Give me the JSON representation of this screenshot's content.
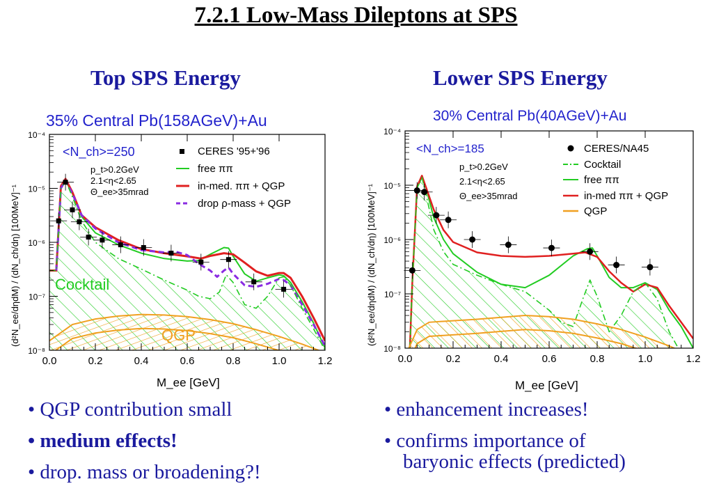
{
  "title": "7.2.1 Low-Mass Dileptons at SPS",
  "left": {
    "heading": "Top SPS Energy",
    "bullets": [
      "• QGP contribution small",
      "• medium effects!",
      "• drop. mass or broadening?!"
    ]
  },
  "right": {
    "heading": "Lower SPS Energy",
    "bullets": [
      "• enhancement increases!",
      "• confirms importance of",
      "baryonic effects (predicted)"
    ]
  },
  "colors": {
    "text_blue": "#1a1a9e",
    "chart_title_blue": "#2222cc",
    "free_pipi": "#22cc22",
    "in_medium": "#e02020",
    "drop_rho": "#8a2be2",
    "qgp": "#f0a020",
    "data": "#000000"
  },
  "chart_data": [
    {
      "type": "line",
      "title": "35% Central Pb(158AGeV)+Au",
      "xlabel": "M_ee [GeV]",
      "ylabel": "(d²N_ee/dηdM) / (dN_ch/dη)  [100MeV]⁻¹",
      "xlim": [
        0.0,
        1.2
      ],
      "ylim_log10": [
        -8,
        -4
      ],
      "x_ticks": [
        "0.0",
        "0.2",
        "0.4",
        "0.6",
        "0.8",
        "1.0",
        "1.2"
      ],
      "y_ticks": [
        "10⁻⁸",
        "10⁻⁷",
        "10⁻⁶",
        "10⁻⁵",
        "10⁻⁴"
      ],
      "log_y": true,
      "annotation_nch": "<N_ch>=250",
      "cuts": [
        "p_t>0.2GeV",
        "2.1<η<2.65",
        "Θ_ee>35mrad"
      ],
      "region_labels": [
        "Cocktail",
        "QGP"
      ],
      "legend_position": "top-right",
      "legend": [
        "CERES  '95+'96",
        "free ππ",
        "in-med. ππ + QGP",
        "drop ρ-mass + QGP"
      ],
      "data_points": {
        "name": "CERES  '95+'96",
        "marker": "square",
        "x": [
          0.04,
          0.07,
          0.1,
          0.13,
          0.17,
          0.23,
          0.31,
          0.41,
          0.53,
          0.66,
          0.78,
          0.89,
          1.02
        ],
        "y": [
          2.5e-06,
          1.3e-05,
          4e-06,
          2.4e-06,
          1.25e-06,
          1.1e-06,
          9e-07,
          8e-07,
          6.3e-07,
          4.3e-07,
          4.8e-07,
          1.85e-07,
          1.35e-07
        ]
      },
      "series": [
        {
          "name": "free ππ",
          "x": [
            0.0,
            0.03,
            0.05,
            0.07,
            0.1,
            0.14,
            0.2,
            0.3,
            0.4,
            0.5,
            0.6,
            0.65,
            0.7,
            0.76,
            0.78,
            0.8,
            0.85,
            0.9,
            0.95,
            1.0,
            1.02,
            1.05,
            1.1,
            1.15,
            1.2
          ],
          "y": [
            3e-07,
            3e-07,
            1e-05,
            1.4e-05,
            8e-06,
            3e-06,
            1.5e-06,
            9e-07,
            6.3e-07,
            5e-07,
            4.5e-07,
            4.6e-07,
            6e-07,
            8e-07,
            7.8e-07,
            5.5e-07,
            2.6e-07,
            1.9e-07,
            2.2e-07,
            2.5e-07,
            2.4e-07,
            1.8e-07,
            8e-08,
            3.2e-08,
            1.1e-08
          ]
        },
        {
          "name": "in-med. ππ + QGP",
          "x": [
            0.0,
            0.03,
            0.05,
            0.07,
            0.1,
            0.14,
            0.2,
            0.3,
            0.4,
            0.5,
            0.6,
            0.66,
            0.7,
            0.76,
            0.8,
            0.85,
            0.9,
            0.95,
            1.0,
            1.02,
            1.05,
            1.1,
            1.15,
            1.2
          ],
          "y": [
            3e-07,
            3e-07,
            1.1e-05,
            1.5e-05,
            8.5e-06,
            3.2e-06,
            1.9e-06,
            1.1e-06,
            7.5e-07,
            6.3e-07,
            5.5e-07,
            5e-07,
            5.6e-07,
            6.3e-07,
            6e-07,
            4.2e-07,
            2.9e-07,
            2.4e-07,
            2.7e-07,
            2.7e-07,
            2.2e-07,
            1e-07,
            4e-08,
            1.5e-08
          ]
        },
        {
          "name": "drop ρ-mass + QGP",
          "x": [
            0.03,
            0.05,
            0.07,
            0.1,
            0.14,
            0.2,
            0.3,
            0.4,
            0.5,
            0.55,
            0.6,
            0.65,
            0.7,
            0.73,
            0.76,
            0.78,
            0.8,
            0.85,
            0.9,
            0.95,
            1.0,
            1.02,
            1.05,
            1.1,
            1.15,
            1.2
          ],
          "y": [
            3e-07,
            1e-05,
            1.4e-05,
            8e-06,
            3.2e-06,
            1.8e-06,
            1e-06,
            7.2e-07,
            6.5e-07,
            6.7e-07,
            5.8e-07,
            4e-07,
            3e-07,
            2.3e-07,
            3e-07,
            3.4e-07,
            2.6e-07,
            1.6e-07,
            1.5e-07,
            1.7e-07,
            2.1e-07,
            2e-07,
            1.6e-07,
            7e-08,
            3e-08,
            1.2e-08
          ]
        },
        {
          "name": "Cocktail",
          "x": [
            0.0,
            0.03,
            0.05,
            0.07,
            0.1,
            0.14,
            0.2,
            0.3,
            0.4,
            0.5,
            0.6,
            0.65,
            0.7,
            0.74,
            0.77,
            0.8,
            0.85,
            0.9,
            0.95,
            1.0,
            1.02,
            1.05,
            1.1,
            1.15,
            1.2
          ],
          "y": [
            3e-07,
            3e-07,
            1e-05,
            1.4e-05,
            7e-06,
            2.5e-06,
            1e-06,
            5e-07,
            3.2e-07,
            2e-07,
            1.3e-07,
            1e-07,
            9e-08,
            1.2e-07,
            2.5e-07,
            1.8e-07,
            7e-08,
            6e-08,
            1e-07,
            2.2e-07,
            2.3e-07,
            1.6e-07,
            6e-08,
            2.5e-08,
            1e-08
          ]
        },
        {
          "name": "QGP",
          "x": [
            0.0,
            0.1,
            0.2,
            0.3,
            0.4,
            0.5,
            0.6,
            0.7,
            0.8,
            0.9,
            1.0,
            1.1,
            1.2
          ],
          "y": [
            1.5e-08,
            3e-08,
            3.8e-08,
            4.3e-08,
            4.6e-08,
            4.5e-08,
            4.2e-08,
            3.7e-08,
            3.1e-08,
            2.4e-08,
            1.8e-08,
            1.3e-08,
            9e-09
          ]
        }
      ]
    },
    {
      "type": "line",
      "title": "30% Central Pb(40AGeV)+Au",
      "xlabel": "M_ee [GeV]",
      "ylabel": "(d²N_ee/dηdM) / (dN_ch/dη)  [100MeV]⁻¹",
      "xlim": [
        0.0,
        1.2
      ],
      "ylim_log10": [
        -8,
        -4
      ],
      "x_ticks": [
        "0.0",
        "0.2",
        "0.4",
        "0.6",
        "0.8",
        "1.0",
        "1.2"
      ],
      "y_ticks": [
        "10⁻⁸",
        "10⁻⁷",
        "10⁻⁶",
        "10⁻⁵",
        "10⁻⁴"
      ],
      "log_y": true,
      "annotation_nch": "<N_ch>=185",
      "cuts": [
        "p_t>0.2GeV",
        "2.1<η<2.65",
        "Θ_ee>35mrad"
      ],
      "legend_position": "top-right",
      "legend": [
        "CERES/NA45",
        "Cocktail",
        "free ππ",
        "in-med ππ + QGP",
        "QGP"
      ],
      "data_points": {
        "name": "CERES/NA45",
        "marker": "circle",
        "x": [
          0.03,
          0.05,
          0.08,
          0.13,
          0.18,
          0.28,
          0.43,
          0.61,
          0.77,
          0.88,
          1.02
        ],
        "y": [
          2.7e-07,
          8e-06,
          7.5e-06,
          2.8e-06,
          2.3e-06,
          1e-06,
          8e-07,
          7e-07,
          6e-07,
          3.4e-07,
          3.1e-07
        ]
      },
      "series": [
        {
          "name": "free ππ",
          "x": [
            0.02,
            0.03,
            0.05,
            0.07,
            0.09,
            0.12,
            0.16,
            0.2,
            0.3,
            0.4,
            0.5,
            0.6,
            0.7,
            0.76,
            0.78,
            0.8,
            0.85,
            0.9,
            0.95,
            1.0,
            1.05,
            1.1,
            1.15,
            1.2
          ],
          "y": [
            1e-08,
            1.5e-07,
            9e-06,
            1.4e-05,
            8e-06,
            2.5e-06,
            1e-06,
            5.5e-07,
            2.5e-07,
            1.5e-07,
            1.3e-07,
            2.2e-07,
            5e-07,
            6.8e-07,
            7e-07,
            5e-07,
            2e-07,
            1.3e-07,
            1.3e-07,
            1.6e-07,
            1.2e-07,
            5e-08,
            2.5e-08,
            1e-08
          ]
        },
        {
          "name": "in-med ππ + QGP",
          "x": [
            0.02,
            0.03,
            0.05,
            0.07,
            0.09,
            0.12,
            0.16,
            0.2,
            0.3,
            0.4,
            0.5,
            0.6,
            0.7,
            0.75,
            0.8,
            0.85,
            0.9,
            0.95,
            1.0,
            1.05,
            1.1,
            1.15,
            1.2
          ],
          "y": [
            1e-08,
            1.5e-07,
            9.5e-06,
            1.5e-05,
            8.5e-06,
            3.5e-06,
            1.5e-06,
            9e-07,
            5.8e-07,
            5e-07,
            4.8e-07,
            5e-07,
            5.5e-07,
            5.8e-07,
            4.8e-07,
            2.6e-07,
            1.6e-07,
            1.1e-07,
            1.5e-07,
            1.3e-07,
            6e-08,
            3e-08,
            1.5e-08
          ]
        },
        {
          "name": "Cocktail",
          "x": [
            0.02,
            0.03,
            0.05,
            0.07,
            0.09,
            0.12,
            0.16,
            0.2,
            0.3,
            0.4,
            0.5,
            0.6,
            0.65,
            0.7,
            0.74,
            0.77,
            0.8,
            0.85,
            0.9,
            0.95,
            1.0,
            1.05,
            1.1,
            1.15,
            1.2
          ],
          "y": [
            1e-08,
            1.5e-07,
            9e-06,
            1.4e-05,
            6e-06,
            1.5e-06,
            6e-07,
            3.5e-07,
            2.2e-07,
            1.5e-07,
            1.1e-07,
            5e-08,
            3e-08,
            2.5e-08,
            8e-08,
            1.8e-07,
            9e-08,
            2e-08,
            4e-08,
            1.1e-07,
            1.6e-07,
            8e-08,
            2e-08,
            8e-09,
            6e-09
          ]
        },
        {
          "name": "QGP",
          "x": [
            0.0,
            0.05,
            0.1,
            0.2,
            0.3,
            0.4,
            0.5,
            0.6,
            0.7,
            0.8,
            0.9,
            1.0,
            1.1,
            1.2
          ],
          "y": [
            7e-09,
            2.2e-08,
            3e-08,
            3.2e-08,
            3.4e-08,
            3.7e-08,
            4e-08,
            3.8e-08,
            3.4e-08,
            2.8e-08,
            2.2e-08,
            1.6e-08,
            1.1e-08,
            7e-09
          ]
        }
      ]
    }
  ]
}
